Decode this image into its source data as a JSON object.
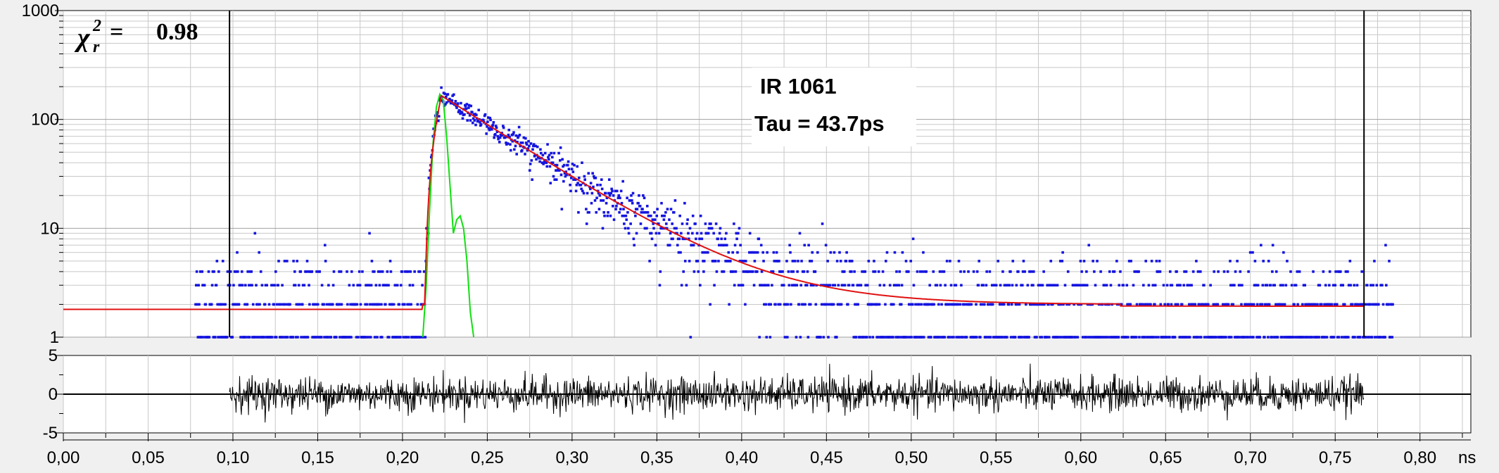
{
  "chart_data": [
    {
      "type": "scatter",
      "panel": "decay",
      "y_scale": "log",
      "ylim": [
        1,
        1000
      ],
      "xlim": [
        0,
        0.83
      ],
      "yticks": [
        "1",
        "10",
        "100",
        "1000"
      ],
      "grid": true,
      "fit_window_markers": [
        0.098,
        0.767
      ],
      "chi_square": {
        "symbol": "χ",
        "sub": "r",
        "sup": "2",
        "equals": "=",
        "value": "0.98"
      },
      "annotation": {
        "line1": "IR 1061",
        "line2": "Tau = 43.7ps"
      },
      "colors": {
        "data": "#1515e0",
        "fit": "#e01010",
        "irf": "#10e010",
        "grid": "#c8c8c8"
      },
      "model": {
        "baseline": 2,
        "onset": 0.213,
        "peak_x": 0.223,
        "peak_y": 165,
        "tau_ns": 0.0437,
        "data_x_range": [
          0.078,
          0.784
        ]
      },
      "series": [
        {
          "kind": "fit",
          "x": [
            0.0,
            0.212,
            0.215,
            0.218,
            0.221,
            0.223,
            0.25,
            0.3,
            0.35,
            0.4,
            0.45,
            0.5,
            0.55,
            0.6,
            0.623,
            0.7,
            0.767
          ],
          "y": [
            1.8,
            1.8,
            8,
            60,
            140,
            160,
            93,
            33,
            11,
            4.7,
            3,
            2.3,
            2,
            2,
            2,
            1.85,
            1.85
          ]
        },
        {
          "kind": "irf",
          "x": [
            0.212,
            0.214,
            0.216,
            0.218,
            0.22,
            0.222,
            0.224,
            0.226,
            0.228,
            0.23,
            0.232,
            0.234,
            0.236,
            0.238,
            0.24,
            0.242
          ],
          "y": [
            1,
            3,
            15,
            60,
            130,
            170,
            150,
            70,
            25,
            9,
            12,
            13,
            10,
            5,
            1.7,
            1
          ]
        }
      ]
    },
    {
      "type": "line",
      "panel": "residuals",
      "ylim": [
        -5,
        5
      ],
      "yticks": [
        "-5",
        "0",
        "5"
      ],
      "x_range": [
        0.098,
        0.767
      ],
      "amplitude": 1.1,
      "colors": {
        "line": "#000000",
        "zero": "#000000"
      }
    }
  ],
  "xaxis": {
    "unit": "ns",
    "ticks": [
      "0,00",
      "0,05",
      "0,10",
      "0,15",
      "0,20",
      "0,25",
      "0,30",
      "0,35",
      "0,40",
      "0,45",
      "0,50",
      "0,55",
      "0,60",
      "0,65",
      "0,70",
      "0,75",
      "0,80"
    ]
  }
}
